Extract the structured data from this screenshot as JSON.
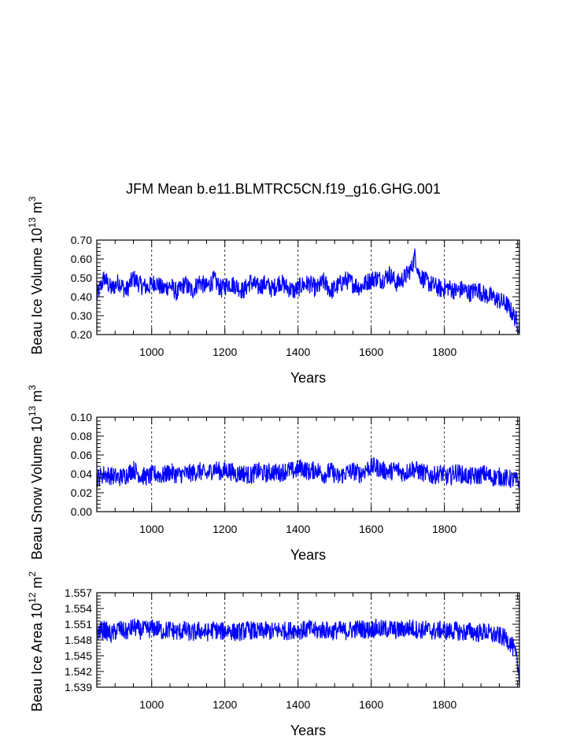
{
  "title": "JFM Mean b.e11.BLMTRC5CN.f19_g16.GHG.001",
  "chart_data": [
    {
      "type": "line",
      "title": "",
      "ylabel": "Beau Ice Volume 10",
      "ylabel_sup1": "13",
      "ylabel_mid": " m",
      "ylabel_sup2": "3",
      "xlabel": "Years",
      "xlim": [
        850,
        2005
      ],
      "ylim": [
        0.2,
        0.7
      ],
      "yticks": [
        "0.20",
        "0.30",
        "0.40",
        "0.50",
        "0.60",
        "0.70"
      ],
      "xticks": [
        "1000",
        "1200",
        "1400",
        "1600",
        "1800"
      ],
      "grid": "vertical dashed",
      "series": [
        {
          "color": "#0000ff",
          "x": [
            850,
            870,
            890,
            910,
            930,
            950,
            970,
            990,
            1010,
            1030,
            1050,
            1070,
            1090,
            1110,
            1130,
            1150,
            1170,
            1190,
            1210,
            1230,
            1250,
            1270,
            1290,
            1310,
            1330,
            1350,
            1370,
            1390,
            1410,
            1430,
            1450,
            1470,
            1490,
            1510,
            1530,
            1550,
            1570,
            1590,
            1610,
            1630,
            1650,
            1670,
            1690,
            1710,
            1720,
            1730,
            1750,
            1770,
            1790,
            1810,
            1830,
            1850,
            1870,
            1890,
            1910,
            1930,
            1950,
            1970,
            1990,
            2005
          ],
          "values": [
            0.4,
            0.5,
            0.44,
            0.48,
            0.43,
            0.5,
            0.46,
            0.45,
            0.48,
            0.44,
            0.46,
            0.42,
            0.47,
            0.43,
            0.48,
            0.45,
            0.49,
            0.44,
            0.47,
            0.46,
            0.43,
            0.48,
            0.45,
            0.47,
            0.44,
            0.48,
            0.45,
            0.43,
            0.46,
            0.47,
            0.44,
            0.48,
            0.43,
            0.46,
            0.49,
            0.47,
            0.45,
            0.48,
            0.5,
            0.49,
            0.52,
            0.47,
            0.5,
            0.55,
            0.62,
            0.52,
            0.48,
            0.46,
            0.44,
            0.45,
            0.43,
            0.44,
            0.42,
            0.44,
            0.41,
            0.4,
            0.38,
            0.36,
            0.3,
            0.24
          ]
        }
      ]
    },
    {
      "type": "line",
      "title": "",
      "ylabel": "Beau Snow Volume 10",
      "ylabel_sup1": "13",
      "ylabel_mid": " m",
      "ylabel_sup2": "3",
      "xlabel": "Years",
      "xlim": [
        850,
        2005
      ],
      "ylim": [
        0.0,
        0.1
      ],
      "yticks": [
        "0.00",
        "0.02",
        "0.04",
        "0.06",
        "0.08",
        "0.10"
      ],
      "xticks": [
        "1000",
        "1200",
        "1400",
        "1600",
        "1800"
      ],
      "grid": "vertical dashed",
      "series": [
        {
          "color": "#0000ff",
          "x": [
            850,
            870,
            890,
            910,
            930,
            950,
            970,
            990,
            1010,
            1030,
            1050,
            1070,
            1090,
            1110,
            1130,
            1150,
            1170,
            1190,
            1210,
            1230,
            1250,
            1270,
            1290,
            1310,
            1330,
            1350,
            1370,
            1390,
            1410,
            1430,
            1450,
            1470,
            1490,
            1510,
            1530,
            1550,
            1570,
            1590,
            1610,
            1630,
            1650,
            1670,
            1690,
            1710,
            1730,
            1750,
            1770,
            1790,
            1810,
            1830,
            1850,
            1870,
            1890,
            1910,
            1930,
            1950,
            1970,
            1990,
            2005
          ],
          "values": [
            0.035,
            0.04,
            0.038,
            0.036,
            0.039,
            0.045,
            0.038,
            0.037,
            0.04,
            0.038,
            0.042,
            0.039,
            0.04,
            0.041,
            0.043,
            0.039,
            0.046,
            0.042,
            0.044,
            0.04,
            0.041,
            0.038,
            0.043,
            0.04,
            0.042,
            0.041,
            0.044,
            0.043,
            0.047,
            0.042,
            0.045,
            0.039,
            0.043,
            0.036,
            0.041,
            0.043,
            0.04,
            0.046,
            0.048,
            0.044,
            0.042,
            0.045,
            0.04,
            0.046,
            0.043,
            0.04,
            0.038,
            0.041,
            0.036,
            0.042,
            0.039,
            0.037,
            0.038,
            0.04,
            0.036,
            0.037,
            0.035,
            0.034,
            0.03
          ]
        }
      ]
    },
    {
      "type": "line",
      "title": "",
      "ylabel": "Beau Ice Area 10",
      "ylabel_sup1": "12",
      "ylabel_mid": " m",
      "ylabel_sup2": "2",
      "xlabel": "Years",
      "xlim": [
        850,
        2005
      ],
      "ylim": [
        1.539,
        1.557
      ],
      "yticks": [
        "1.539",
        "1.542",
        "1.545",
        "1.548",
        "1.551",
        "1.554",
        "1.557"
      ],
      "xticks": [
        "1000",
        "1200",
        "1400",
        "1600",
        "1800"
      ],
      "grid": "vertical dashed",
      "series": [
        {
          "color": "#0000ff",
          "x": [
            850,
            870,
            890,
            910,
            930,
            950,
            970,
            990,
            1010,
            1030,
            1050,
            1070,
            1090,
            1110,
            1130,
            1150,
            1170,
            1190,
            1210,
            1230,
            1250,
            1270,
            1290,
            1310,
            1330,
            1350,
            1370,
            1390,
            1410,
            1430,
            1450,
            1470,
            1490,
            1510,
            1530,
            1550,
            1570,
            1590,
            1610,
            1630,
            1650,
            1670,
            1690,
            1710,
            1730,
            1750,
            1770,
            1790,
            1810,
            1830,
            1850,
            1870,
            1890,
            1910,
            1930,
            1950,
            1970,
            1985,
            1995,
            2005
          ],
          "values": [
            1.5495,
            1.55,
            1.549,
            1.5502,
            1.5495,
            1.5505,
            1.5498,
            1.55,
            1.5503,
            1.5497,
            1.55,
            1.5495,
            1.5499,
            1.5492,
            1.5498,
            1.5494,
            1.55,
            1.5496,
            1.5499,
            1.5494,
            1.5497,
            1.5499,
            1.5495,
            1.5498,
            1.5496,
            1.5499,
            1.5497,
            1.55,
            1.5498,
            1.5501,
            1.5497,
            1.55,
            1.5496,
            1.5499,
            1.5497,
            1.55,
            1.5502,
            1.5499,
            1.5503,
            1.55,
            1.5502,
            1.5498,
            1.5501,
            1.5503,
            1.5499,
            1.55,
            1.5497,
            1.5499,
            1.5496,
            1.5498,
            1.5494,
            1.5497,
            1.5493,
            1.5496,
            1.549,
            1.5488,
            1.5482,
            1.547,
            1.545,
            1.541
          ]
        }
      ]
    }
  ]
}
